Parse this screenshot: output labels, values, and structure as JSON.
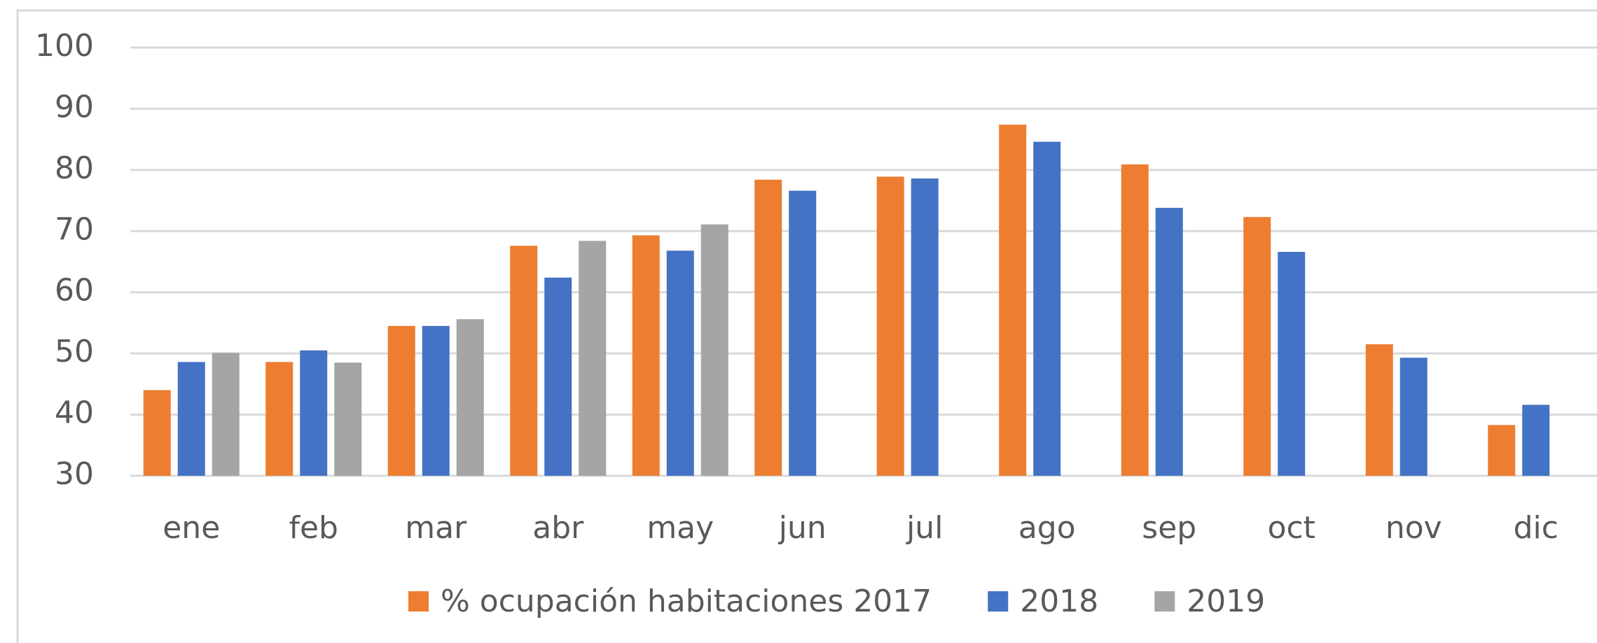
{
  "chart_data": {
    "type": "bar",
    "categories": [
      "ene",
      "feb",
      "mar",
      "abr",
      "may",
      "jun",
      "jul",
      "ago",
      "sep",
      "oct",
      "nov",
      "dic"
    ],
    "series": [
      {
        "name": "% ocupación habitaciones 2017",
        "color": "#ed7d31",
        "values": [
          44,
          48.6,
          54.5,
          67.6,
          69.3,
          78.4,
          78.9,
          87.4,
          80.9,
          72.3,
          51.5,
          38.3
        ]
      },
      {
        "name": "2018",
        "color": "#4472c4",
        "values": [
          48.6,
          50.5,
          54.5,
          62.4,
          66.8,
          76.6,
          78.6,
          84.6,
          73.8,
          66.6,
          49.3,
          41.6
        ]
      },
      {
        "name": "2019",
        "color": "#a5a5a5",
        "values": [
          50.1,
          48.5,
          55.6,
          68.4,
          71.1,
          null,
          null,
          null,
          null,
          null,
          null,
          null
        ]
      }
    ],
    "ylim": [
      30,
      100
    ],
    "yticks": [
      30,
      40,
      50,
      60,
      70,
      80,
      90,
      100
    ],
    "grid": true,
    "legend": "bottom"
  }
}
